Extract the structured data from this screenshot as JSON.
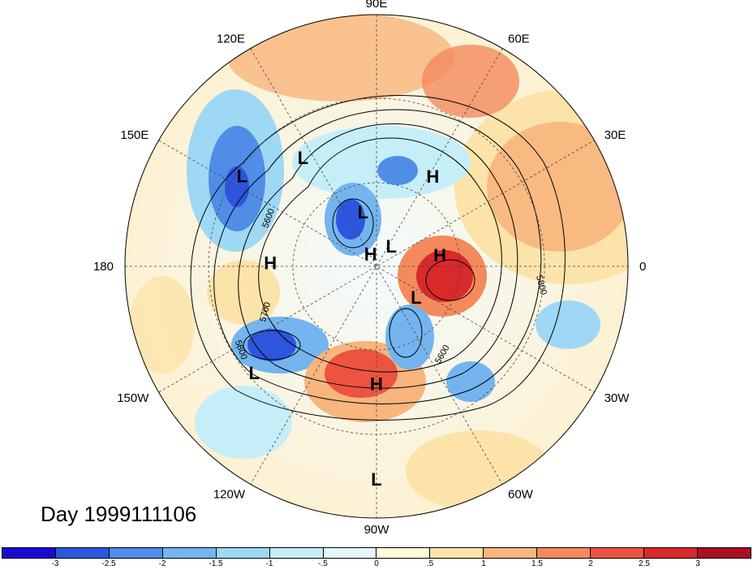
{
  "title": "Day 1999111106",
  "longitude_labels": [
    {
      "text": "90E",
      "lon": 90
    },
    {
      "text": "60E",
      "lon": 60
    },
    {
      "text": "30E",
      "lon": 30
    },
    {
      "text": "0",
      "lon": 0
    },
    {
      "text": "30W",
      "lon": -30
    },
    {
      "text": "60W",
      "lon": -60
    },
    {
      "text": "90W",
      "lon": -90
    },
    {
      "text": "120W",
      "lon": -120
    },
    {
      "text": "150W",
      "lon": -150
    },
    {
      "text": "180",
      "lon": 180
    },
    {
      "text": "150E",
      "lon": 150
    },
    {
      "text": "120E",
      "lon": 120
    }
  ],
  "pressure_centers": [
    {
      "type": "L",
      "lon": 124,
      "lat": 43
    },
    {
      "type": "L",
      "lon": 146,
      "lat": 32
    },
    {
      "type": "H",
      "lon": 58,
      "lat": 52
    },
    {
      "type": "L",
      "lon": 104,
      "lat": 70
    },
    {
      "type": "L",
      "lon": 54,
      "lat": 81
    },
    {
      "type": "H",
      "lon": 115,
      "lat": 85
    },
    {
      "type": "H",
      "lon": 10,
      "lat": 67
    },
    {
      "type": "H",
      "lon": 178,
      "lat": 52
    },
    {
      "type": "L",
      "lon": -38,
      "lat": 72
    },
    {
      "type": "H",
      "lon": -90,
      "lat": 48
    },
    {
      "type": "L",
      "lon": -139,
      "lat": 32
    },
    {
      "type": "L",
      "lon": -90,
      "lat": 14
    }
  ],
  "contour_labels": [
    "5600",
    "5700",
    "5800",
    "5600",
    "5800"
  ],
  "colorbar": {
    "colors": [
      "#1a0ad0",
      "#2d55dd",
      "#4f8de6",
      "#74b5ef",
      "#9ed8f4",
      "#c5eef8",
      "#e6f8fb",
      "#fefbd9",
      "#fce3a9",
      "#f8b57d",
      "#f48a5c",
      "#ec5340",
      "#d8292b",
      "#a90f22"
    ],
    "tick_labels": [
      "-3",
      "-2.5",
      "-2",
      "-1.5",
      "-1",
      "-.5",
      "0",
      ".5",
      "1",
      "1.5",
      "2",
      "2.5",
      "3"
    ]
  }
}
